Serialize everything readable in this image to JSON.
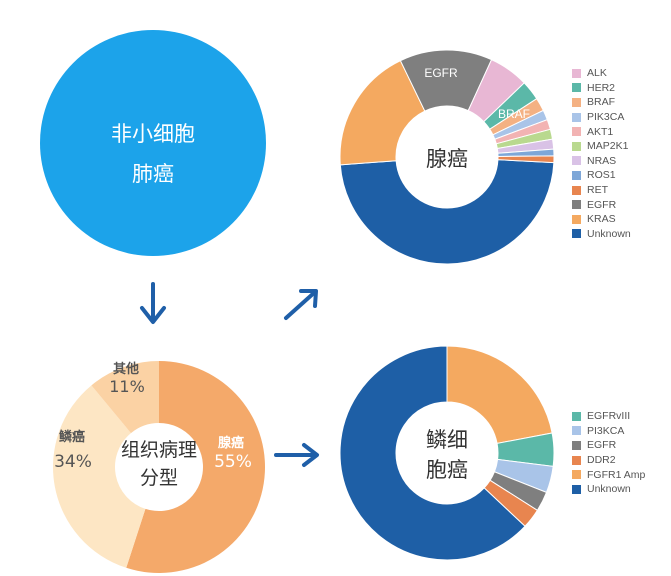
{
  "nsclc_circle": {
    "line1": "非小细胞",
    "line2": "肺癌",
    "color": "#1ca3ea"
  },
  "arrow_color": "#1f5fa8",
  "histology": {
    "center_line1": "组织病理",
    "center_line2": "分型",
    "slices": [
      {
        "name": "腺癌",
        "percent_label": "55%",
        "value": 55,
        "color": "#f4a96a"
      },
      {
        "name": "鳞癌",
        "percent_label": "34%",
        "value": 34,
        "color": "#fde6c4"
      },
      {
        "name": "其他",
        "percent_label": "11%",
        "value": 11,
        "color": "#fbd2a4"
      }
    ]
  },
  "adeno": {
    "center_label": "腺癌",
    "segment_labels": {
      "EGFR": "EGFR",
      "BRAF": "BRAF"
    },
    "legend": [
      {
        "name": "ALK",
        "color": "#e8b7d4"
      },
      {
        "name": "HER2",
        "color": "#5bb8a8"
      },
      {
        "name": "BRAF",
        "color": "#f4b183"
      },
      {
        "name": "PIK3CA",
        "color": "#a9c4e8"
      },
      {
        "name": "AKT1",
        "color": "#f2b3b3"
      },
      {
        "name": "MAP2K1",
        "color": "#b9d98f"
      },
      {
        "name": "NRAS",
        "color": "#d9c2e6"
      },
      {
        "name": "ROS1",
        "color": "#7ea7d8"
      },
      {
        "name": "RET",
        "color": "#e8854f"
      },
      {
        "name": "EGFR",
        "color": "#7f7f7f"
      },
      {
        "name": "KRAS",
        "color": "#f4a960"
      },
      {
        "name": "Unknown",
        "color": "#1e5fa6"
      }
    ]
  },
  "squam": {
    "center_line1": "鳞细",
    "center_line2": "胞癌",
    "legend": [
      {
        "name": "EGFRvIII",
        "color": "#5bb8a8"
      },
      {
        "name": "PI3KCA",
        "color": "#a9c4e8"
      },
      {
        "name": "EGFR",
        "color": "#7f7f7f"
      },
      {
        "name": "DDR2",
        "color": "#e8854f"
      },
      {
        "name": "FGFR1 Amp",
        "color": "#f4a960"
      },
      {
        "name": "Unknown",
        "color": "#1e5fa6"
      }
    ]
  },
  "chart_data": [
    {
      "type": "pie",
      "categories": [
        "腺癌",
        "鳞癌",
        "其他"
      ],
      "values": [
        55,
        34,
        11
      ]
    },
    {
      "type": "pie",
      "categories": [
        "Unknown",
        "KRAS",
        "EGFR",
        "ALK",
        "HER2",
        "BRAF",
        "PIK3CA",
        "AKT1",
        "MAP2K1",
        "NRAS",
        "ROS1",
        "RET"
      ],
      "values": [
        48,
        19,
        14,
        6,
        3,
        2,
        1.5,
        1.5,
        1.5,
        1.5,
        1,
        1
      ]
    },
    {
      "type": "pie",
      "categories": [
        "FGFR1 Amp",
        "EGFRvIII",
        "PI3KCA",
        "EGFR",
        "DDR2",
        "Unknown"
      ],
      "values": [
        22,
        5,
        4,
        3,
        3,
        63
      ]
    }
  ]
}
